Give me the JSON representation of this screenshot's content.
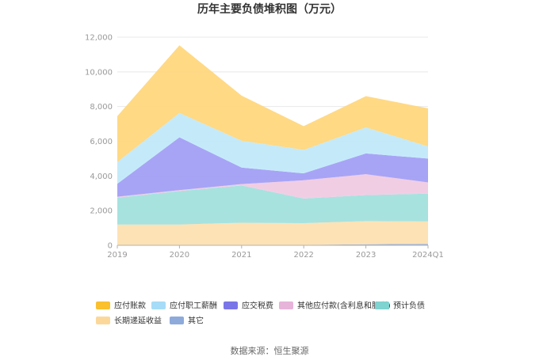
{
  "chart_data": {
    "type": "area",
    "stacked": true,
    "title": "历年主要负债堆积图（万元）",
    "categories": [
      "2019",
      "2020",
      "2021",
      "2022",
      "2023",
      "2024Q1"
    ],
    "ylim": [
      0,
      12000
    ],
    "yticks": [
      "0",
      "2,000",
      "4,000",
      "6,000",
      "8,000",
      "10,000",
      "12,000"
    ],
    "grid": true,
    "legend_position": "bottom",
    "series": [
      {
        "name": "其它",
        "color": "#8eaadb",
        "values": [
          20,
          20,
          20,
          20,
          60,
          80
        ]
      },
      {
        "name": "长期递延收益",
        "color": "#fde0b0",
        "values": [
          1180,
          1180,
          1280,
          1260,
          1340,
          1300
        ]
      },
      {
        "name": "预计负债",
        "color": "#9fe0dc",
        "values": [
          1550,
          1930,
          2150,
          1420,
          1500,
          1600
        ]
      },
      {
        "name": "其他应付款(含利息和股利)",
        "color": "#f0c9e2",
        "values": [
          50,
          50,
          80,
          1050,
          1200,
          650
        ]
      },
      {
        "name": "应交税费",
        "color": "#a09cf5",
        "values": [
          750,
          3050,
          950,
          400,
          1200,
          1370
        ]
      },
      {
        "name": "应付职工薪酬",
        "color": "#bfe8fa",
        "values": [
          1250,
          1400,
          1550,
          1350,
          1500,
          700
        ]
      },
      {
        "name": "应付账款",
        "color": "#ffd679",
        "values": [
          2650,
          3900,
          2600,
          1370,
          1800,
          2200
        ]
      }
    ],
    "legend_order": [
      "应付账款",
      "应付职工薪酬",
      "应交税费",
      "其他应付款(含利息和股利)",
      "预计负债",
      "长期递延收益",
      "其它"
    ],
    "legend_colors": {
      "应付账款": "#fbc02d",
      "应付职工薪酬": "#a6dcf7",
      "应交税费": "#7b76e8",
      "其他应付款(含利息和股利)": "#e6b3d9",
      "预计负债": "#7fd3d0",
      "长期递延收益": "#fbd89a",
      "其它": "#8eaadb"
    }
  },
  "source": "数据来源：恒生聚源"
}
